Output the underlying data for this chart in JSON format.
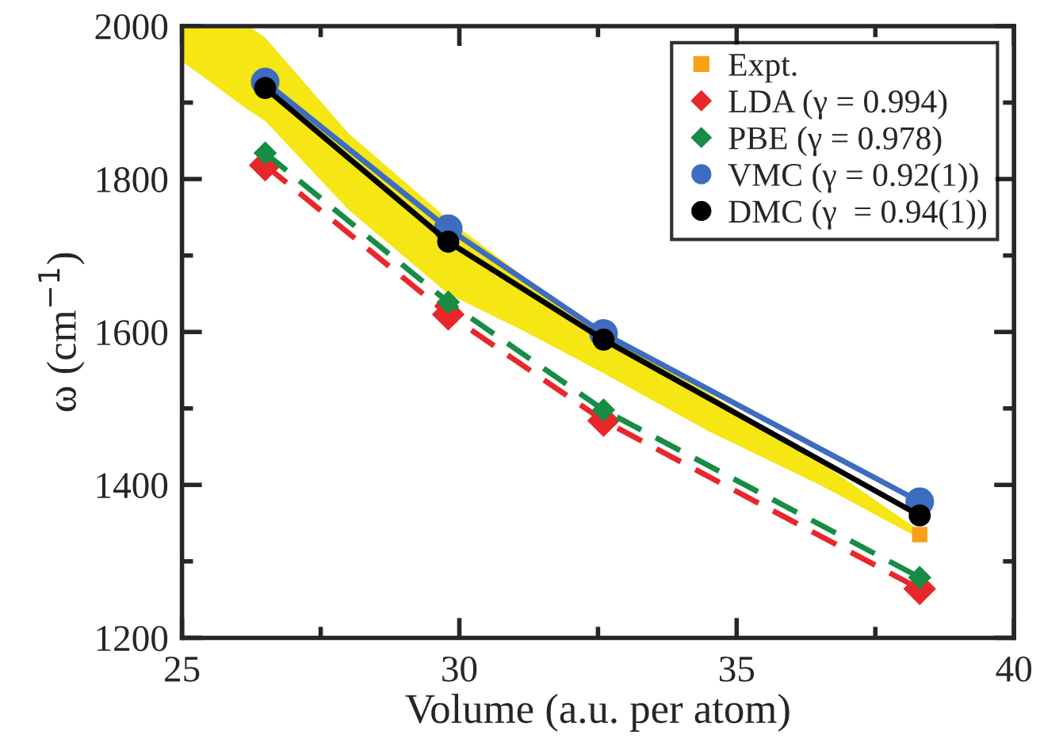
{
  "chart_data": {
    "type": "line",
    "xlabel": "Volume (a.u. per atom)",
    "ylabel": "ω (cm$^{−1}$)",
    "xlim": [
      25,
      40
    ],
    "xticks": [
      25,
      30,
      35,
      40
    ],
    "ylim": [
      1200,
      2000
    ],
    "yticks": [
      1200,
      1400,
      1600,
      1800,
      2000
    ],
    "grid": false,
    "legend": "top right",
    "series": [
      {
        "type": "area",
        "color": "#f5e614",
        "x": [
          25,
          26.2,
          26.5,
          28,
          29.8,
          31.2,
          32.6,
          34.5,
          36.5,
          38.3
        ],
        "values": [
          null,
          null,
          null,
          null,
          null,
          null,
          null,
          null,
          null,
          null
        ],
        "lower": [
          1954,
          1890,
          1876,
          1760,
          1650,
          1600,
          1546,
          1470,
          1400,
          1330
        ],
        "upper": [
          2000,
          2000,
          1985,
          1860,
          1747,
          1670,
          1598,
          1520,
          1430,
          1340
        ]
      },
      {
        "name": "Expt.",
        "type": "scatter",
        "marker": "square",
        "color": "#f7a11a",
        "x": [
          38.3
        ],
        "values": [
          1335
        ]
      },
      {
        "name": "LDA (γ = 0.994)",
        "marker": "diamond",
        "line_style": "dashed",
        "color": "#e8272a",
        "x": [
          26.5,
          29.8,
          32.6,
          38.3
        ],
        "values": [
          1818,
          1623,
          1484,
          1264
        ]
      },
      {
        "name": "PBE (γ = 0.978)",
        "marker": "diamond",
        "line_style": "dashed",
        "color": "#178c45",
        "x": [
          26.5,
          29.8,
          32.6,
          38.3
        ],
        "values": [
          1834,
          1639,
          1498,
          1279
        ]
      },
      {
        "name": "VMC (γ = 0.92(1))",
        "marker": "circle",
        "line_style": "solid",
        "color": "#3d6cc0",
        "x": [
          26.5,
          29.8,
          32.6,
          38.3
        ],
        "values": [
          1927,
          1735,
          1598,
          1378
        ]
      },
      {
        "name": "DMC (γ  = 0.94(1))",
        "marker": "circle",
        "line_style": "solid",
        "color": "#000000",
        "x": [
          26.5,
          29.8,
          32.6,
          38.3
        ],
        "values": [
          1919,
          1718,
          1590,
          1360
        ]
      }
    ]
  }
}
